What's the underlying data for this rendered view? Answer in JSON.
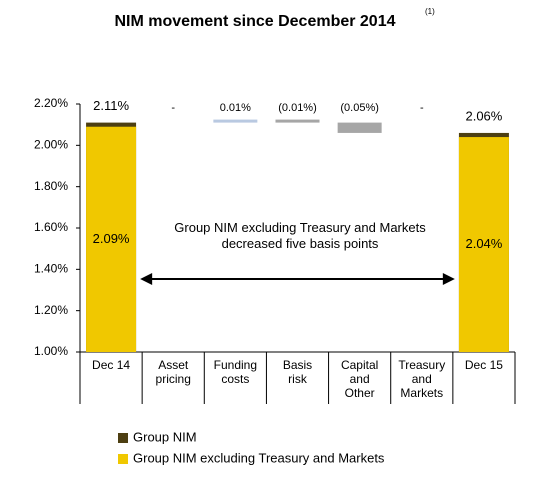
{
  "chart_data": {
    "type": "waterfall",
    "title": "NIM movement since December 2014",
    "title_note": "(1)",
    "categories": [
      "Dec 14",
      "Asset\npricing",
      "Funding\ncosts",
      "Basis\nrisk",
      "Capital\nand\nOther",
      "Treasury\nand\nMarkets",
      "Dec 15"
    ],
    "series": [
      {
        "name": "Group NIM",
        "color": "#4d3f12",
        "values": [
          2.11,
          null,
          null,
          null,
          null,
          null,
          2.06
        ],
        "value_labels": [
          "2.11%",
          null,
          null,
          null,
          null,
          null,
          "2.06%"
        ]
      },
      {
        "name": "Group NIM excluding Treasury and Markets",
        "color": "#f0c800",
        "values": [
          2.09,
          null,
          null,
          null,
          null,
          null,
          2.04
        ],
        "value_labels": [
          "2.09%",
          null,
          null,
          null,
          null,
          null,
          "2.04%"
        ]
      }
    ],
    "steps": {
      "values": [
        null,
        0,
        0.01,
        -0.01,
        -0.05,
        0,
        null
      ],
      "value_labels": [
        null,
        "-",
        "0.01%",
        "(0.01%)",
        "(0.05%)",
        "-",
        null
      ],
      "increase_color": "#b9c9e1",
      "decrease_color": "#a6a6a6"
    },
    "annotation": "Group NIM excluding Treasury and Markets\ndecreased five basis points",
    "ylim": [
      1.0,
      2.2
    ],
    "yticks": [
      {
        "value": 1.0,
        "label": "1.00%"
      },
      {
        "value": 1.2,
        "label": "1.20%"
      },
      {
        "value": 1.4,
        "label": "1.40%"
      },
      {
        "value": 1.6,
        "label": "1.60%"
      },
      {
        "value": 1.8,
        "label": "1.80%"
      },
      {
        "value": 2.0,
        "label": "2.00%"
      },
      {
        "value": 2.2,
        "label": "2.20%"
      }
    ]
  }
}
